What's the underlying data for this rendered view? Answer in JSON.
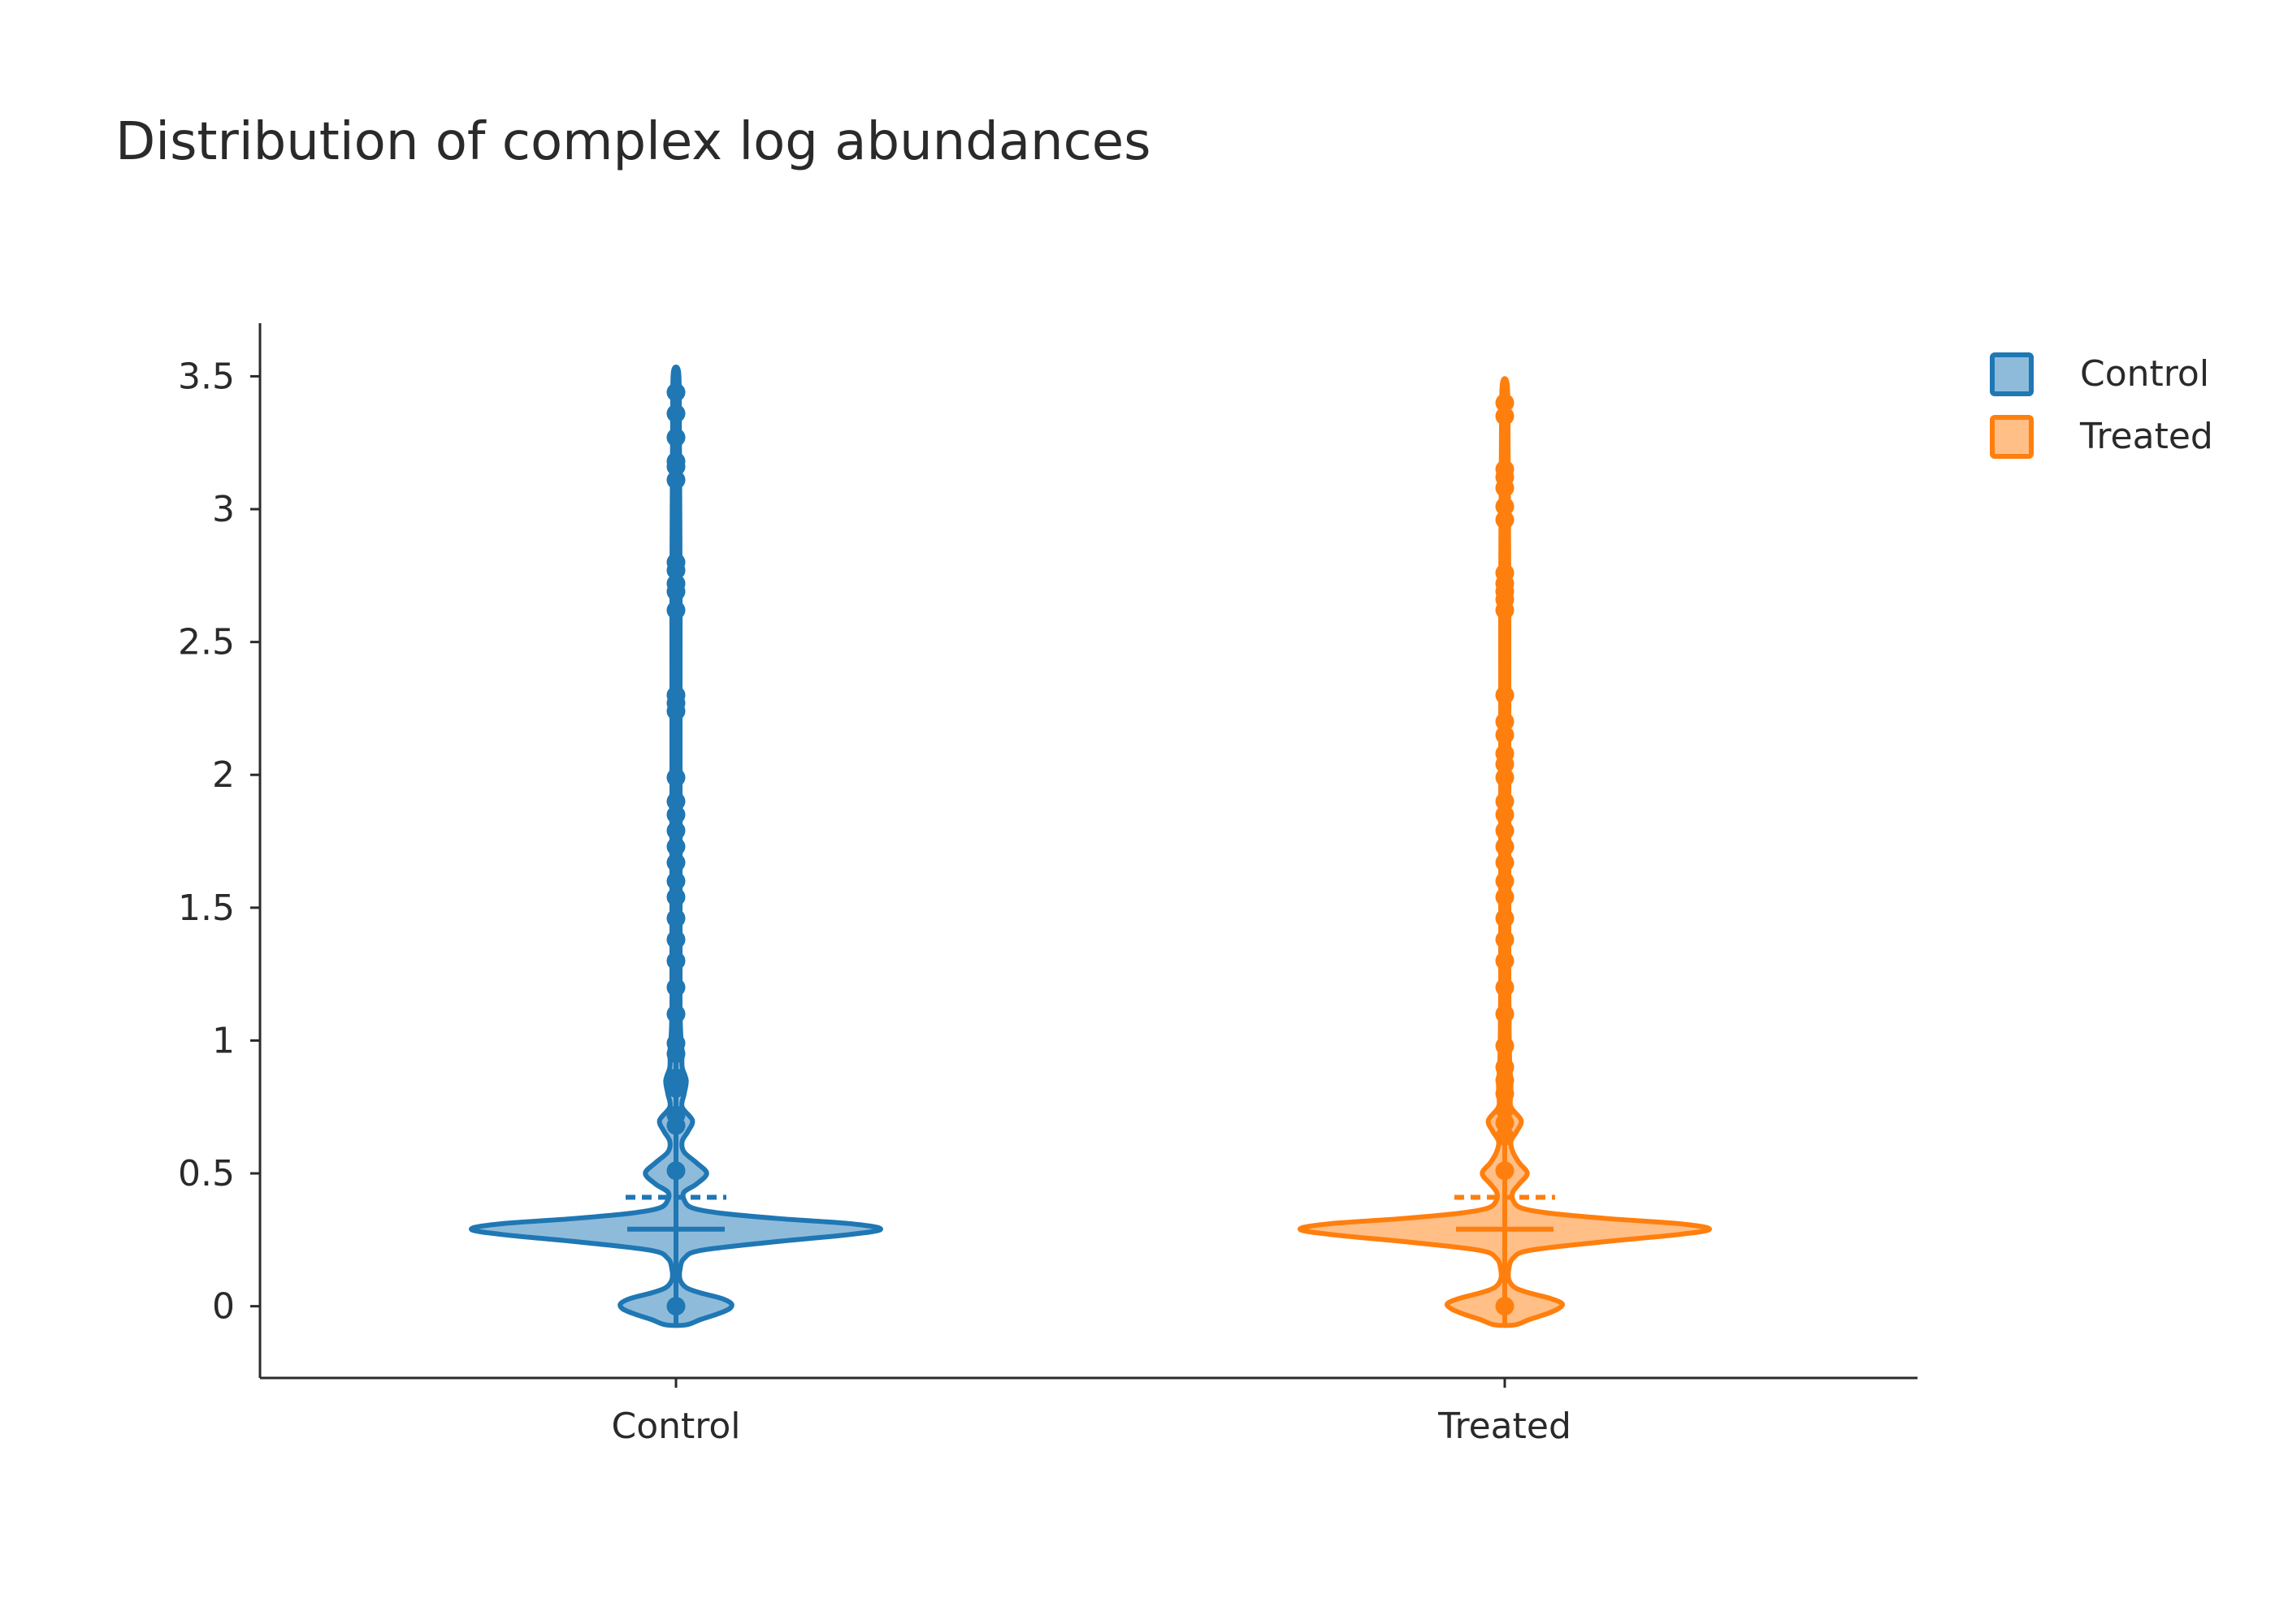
{
  "chart_data": {
    "type": "violin",
    "title": "Distribution of complex log abundances",
    "xlabel": "",
    "ylabel": "",
    "categories": [
      "Control",
      "Treated"
    ],
    "ylim": [
      -0.27,
      3.7
    ],
    "yticks": [
      0,
      0.5,
      1,
      1.5,
      2,
      2.5,
      3,
      3.5
    ],
    "ytick_labels": [
      "0",
      "0.5",
      "1",
      "1.5",
      "2",
      "2.5",
      "3",
      "3.5"
    ],
    "grid": false,
    "legend": {
      "placement": "top-right",
      "entries": [
        "Control",
        "Treated"
      ]
    },
    "series": [
      {
        "name": "Control",
        "color": "#1f77b4",
        "fill": "#8fbbdb",
        "range": [
          -0.07,
          3.52
        ],
        "median": 0.29,
        "mean": 0.41,
        "density": [
          [
            -0.07,
            0.05
          ],
          [
            -0.05,
            0.12
          ],
          [
            -0.03,
            0.2
          ],
          [
            -0.01,
            0.26
          ],
          [
            0.01,
            0.27
          ],
          [
            0.03,
            0.22
          ],
          [
            0.05,
            0.12
          ],
          [
            0.07,
            0.05
          ],
          [
            0.1,
            0.02
          ],
          [
            0.14,
            0.02
          ],
          [
            0.18,
            0.04
          ],
          [
            0.21,
            0.12
          ],
          [
            0.24,
            0.45
          ],
          [
            0.27,
            0.85
          ],
          [
            0.29,
            1.0
          ],
          [
            0.31,
            0.86
          ],
          [
            0.33,
            0.5
          ],
          [
            0.35,
            0.22
          ],
          [
            0.37,
            0.08
          ],
          [
            0.4,
            0.04
          ],
          [
            0.43,
            0.04
          ],
          [
            0.46,
            0.1
          ],
          [
            0.5,
            0.15
          ],
          [
            0.54,
            0.1
          ],
          [
            0.58,
            0.04
          ],
          [
            0.62,
            0.03
          ],
          [
            0.66,
            0.06
          ],
          [
            0.7,
            0.08
          ],
          [
            0.75,
            0.03
          ],
          [
            0.8,
            0.04
          ],
          [
            0.85,
            0.05
          ],
          [
            0.9,
            0.03
          ],
          [
            0.96,
            0.03
          ],
          [
            1.0,
            0.025
          ],
          [
            1.1,
            0.02
          ],
          [
            1.3,
            0.02
          ],
          [
            1.6,
            0.02
          ],
          [
            1.9,
            0.02
          ],
          [
            2.3,
            0.02
          ],
          [
            2.7,
            0.02
          ],
          [
            3.1,
            0.018
          ],
          [
            3.4,
            0.016
          ],
          [
            3.52,
            0.012
          ]
        ],
        "points": [
          0,
          0.51,
          0.68,
          0.72,
          0.82,
          0.86,
          0.95,
          0.99,
          1.1,
          1.2,
          1.3,
          1.38,
          1.46,
          1.54,
          1.6,
          1.67,
          1.73,
          1.79,
          1.85,
          1.9,
          1.99,
          2.24,
          2.27,
          2.3,
          2.62,
          2.69,
          2.72,
          2.77,
          2.8,
          3.11,
          3.16,
          3.18,
          3.27,
          3.36,
          3.44
        ]
      },
      {
        "name": "Treated",
        "color": "#ff7f0e",
        "fill": "#ffbf87",
        "range": [
          -0.07,
          3.47
        ],
        "median": 0.29,
        "mean": 0.41,
        "density": [
          [
            -0.07,
            0.05
          ],
          [
            -0.05,
            0.12
          ],
          [
            -0.03,
            0.2
          ],
          [
            -0.01,
            0.26
          ],
          [
            0.01,
            0.28
          ],
          [
            0.03,
            0.22
          ],
          [
            0.05,
            0.12
          ],
          [
            0.07,
            0.05
          ],
          [
            0.1,
            0.02
          ],
          [
            0.14,
            0.02
          ],
          [
            0.18,
            0.04
          ],
          [
            0.21,
            0.12
          ],
          [
            0.24,
            0.45
          ],
          [
            0.27,
            0.85
          ],
          [
            0.29,
            1.0
          ],
          [
            0.31,
            0.86
          ],
          [
            0.33,
            0.5
          ],
          [
            0.35,
            0.22
          ],
          [
            0.37,
            0.08
          ],
          [
            0.4,
            0.04
          ],
          [
            0.43,
            0.04
          ],
          [
            0.46,
            0.07
          ],
          [
            0.5,
            0.11
          ],
          [
            0.54,
            0.07
          ],
          [
            0.58,
            0.04
          ],
          [
            0.62,
            0.03
          ],
          [
            0.66,
            0.06
          ],
          [
            0.7,
            0.08
          ],
          [
            0.75,
            0.03
          ],
          [
            0.8,
            0.03
          ],
          [
            0.85,
            0.03
          ],
          [
            0.9,
            0.025
          ],
          [
            1.0,
            0.022
          ],
          [
            1.2,
            0.02
          ],
          [
            1.5,
            0.02
          ],
          [
            1.8,
            0.02
          ],
          [
            2.1,
            0.02
          ],
          [
            2.4,
            0.02
          ],
          [
            2.7,
            0.02
          ],
          [
            3.0,
            0.018
          ],
          [
            3.3,
            0.016
          ],
          [
            3.47,
            0.012
          ]
        ],
        "points": [
          0,
          0.51,
          0.64,
          0.69,
          0.74,
          0.8,
          0.85,
          0.9,
          0.98,
          1.1,
          1.2,
          1.3,
          1.38,
          1.46,
          1.54,
          1.6,
          1.67,
          1.73,
          1.79,
          1.85,
          1.9,
          1.99,
          2.04,
          2.08,
          2.15,
          2.2,
          2.3,
          2.62,
          2.66,
          2.69,
          2.72,
          2.76,
          2.96,
          3.01,
          3.08,
          3.12,
          3.15,
          3.35,
          3.4
        ]
      }
    ]
  }
}
